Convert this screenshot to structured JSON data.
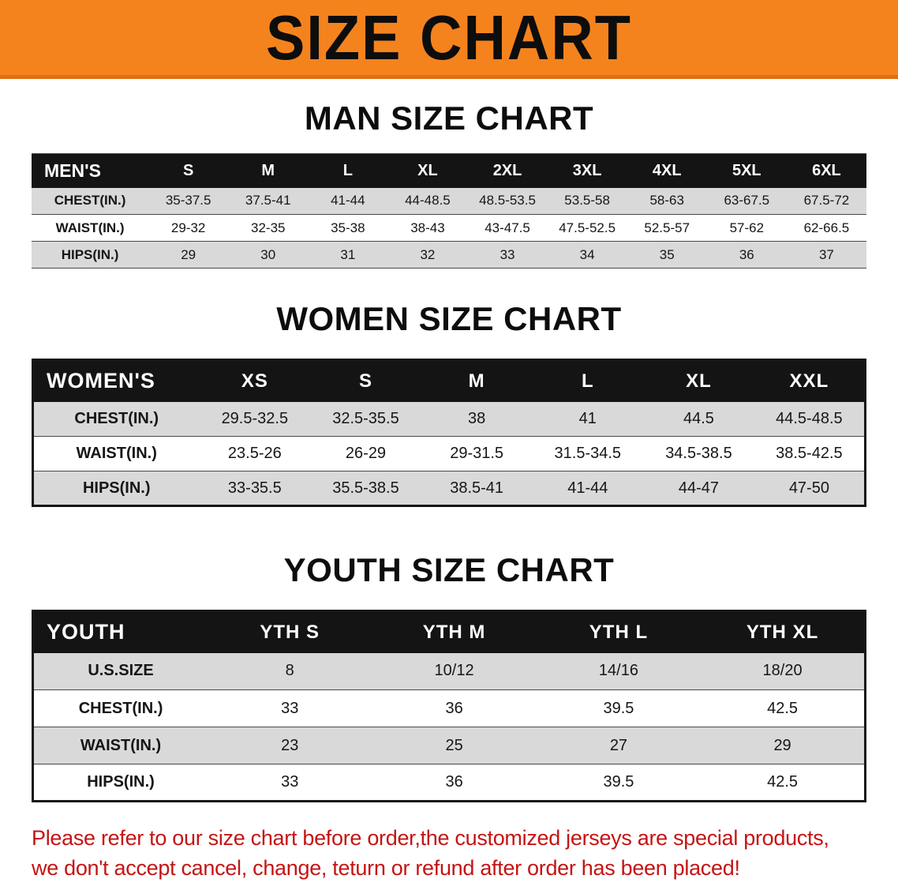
{
  "banner": {
    "title": "SIZE CHART"
  },
  "colors": {
    "banner_bg": "#f5831d",
    "table_header_bg": "#141414",
    "row_alt_bg": "#d9d9d9",
    "note_text": "#c41414"
  },
  "chart_data": [
    {
      "type": "table",
      "title": "MAN SIZE CHART",
      "header_label": "MEN'S",
      "columns": [
        "S",
        "M",
        "L",
        "XL",
        "2XL",
        "3XL",
        "4XL",
        "5XL",
        "6XL"
      ],
      "rows": [
        {
          "label": "CHEST(IN.)",
          "values": [
            "35-37.5",
            "37.5-41",
            "41-44",
            "44-48.5",
            "48.5-53.5",
            "53.5-58",
            "58-63",
            "63-67.5",
            "67.5-72"
          ]
        },
        {
          "label": "WAIST(IN.)",
          "values": [
            "29-32",
            "32-35",
            "35-38",
            "38-43",
            "43-47.5",
            "47.5-52.5",
            "52.5-57",
            "57-62",
            "62-66.5"
          ]
        },
        {
          "label": "HIPS(IN.)",
          "values": [
            "29",
            "30",
            "31",
            "32",
            "33",
            "34",
            "35",
            "36",
            "37"
          ]
        }
      ]
    },
    {
      "type": "table",
      "title": "WOMEN SIZE CHART",
      "header_label": "WOMEN'S",
      "columns": [
        "XS",
        "S",
        "M",
        "L",
        "XL",
        "XXL"
      ],
      "rows": [
        {
          "label": "CHEST(IN.)",
          "values": [
            "29.5-32.5",
            "32.5-35.5",
            "38",
            "41",
            "44.5",
            "44.5-48.5"
          ]
        },
        {
          "label": "WAIST(IN.)",
          "values": [
            "23.5-26",
            "26-29",
            "29-31.5",
            "31.5-34.5",
            "34.5-38.5",
            "38.5-42.5"
          ]
        },
        {
          "label": "HIPS(IN.)",
          "values": [
            "33-35.5",
            "35.5-38.5",
            "38.5-41",
            "41-44",
            "44-47",
            "47-50"
          ]
        }
      ]
    },
    {
      "type": "table",
      "title": "YOUTH SIZE CHART",
      "header_label": "YOUTH",
      "columns": [
        "YTH S",
        "YTH M",
        "YTH L",
        "YTH XL"
      ],
      "rows": [
        {
          "label": "U.S.SIZE",
          "values": [
            "8",
            "10/12",
            "14/16",
            "18/20"
          ]
        },
        {
          "label": "CHEST(IN.)",
          "values": [
            "33",
            "36",
            "39.5",
            "42.5"
          ]
        },
        {
          "label": "WAIST(IN.)",
          "values": [
            "23",
            "25",
            "27",
            "29"
          ]
        },
        {
          "label": "HIPS(IN.)",
          "values": [
            "33",
            "36",
            "39.5",
            "42.5"
          ]
        }
      ]
    }
  ],
  "note": {
    "lines": [
      "Please refer to our size chart before order,the customized jerseys are special products,",
      "we don't accept cancel, change, teturn or refund after order has been placed!"
    ]
  }
}
